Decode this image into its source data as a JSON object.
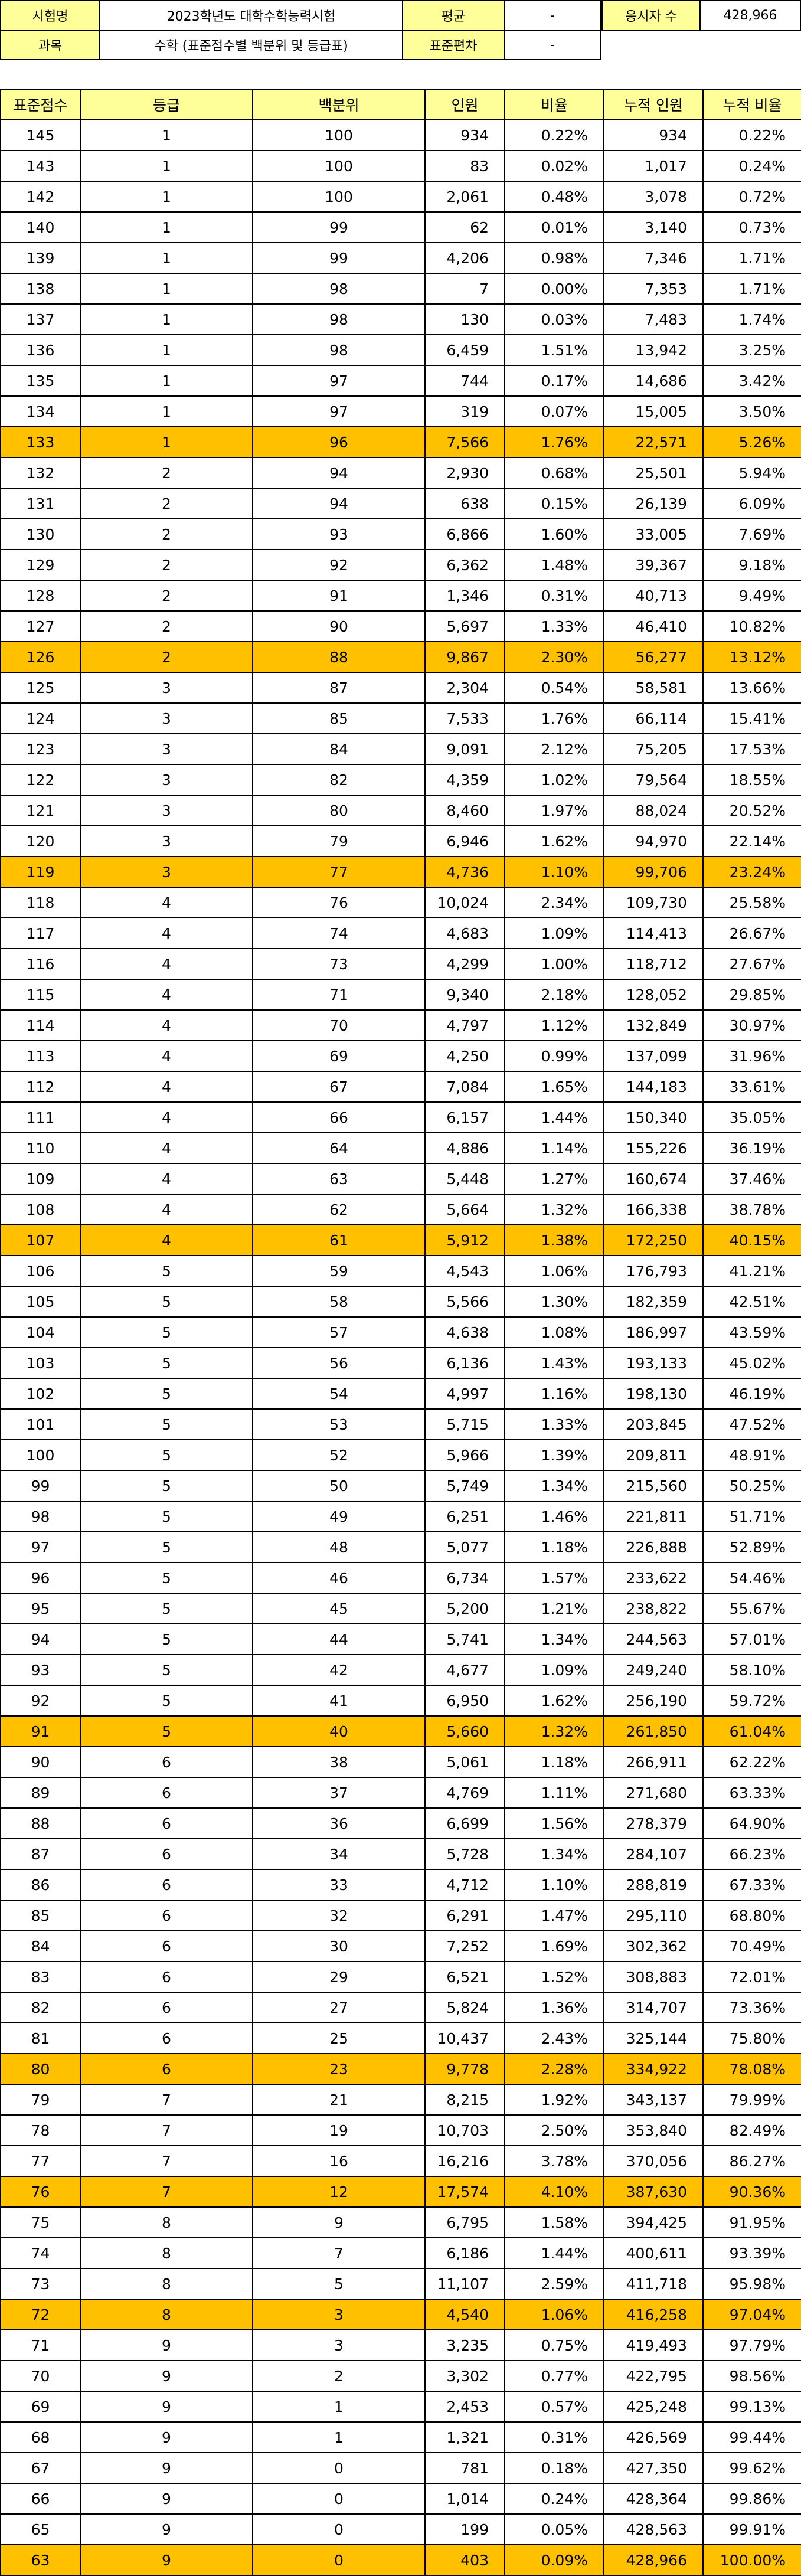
{
  "info": {
    "exam_label": "시험명",
    "exam_value": "2023학년도 대학수학능력시험",
    "mean_label": "평균",
    "mean_value": "-",
    "takers_label": "응시자 수",
    "takers_value": "428,966",
    "subject_label": "과목",
    "subject_value": "수학 (표준점수별 백분위 및 등급표)",
    "sd_label": "표준편차",
    "sd_value": "-"
  },
  "table": {
    "headers": [
      "표준점수",
      "등급",
      "백분위",
      "인원",
      "비율",
      "누적 인원",
      "누적 비율"
    ],
    "highlight_color": "#ffc000",
    "header_color": "#ffff99",
    "rows": [
      [
        "145",
        "1",
        "100",
        "934",
        "0.22%",
        "934",
        "0.22%",
        false
      ],
      [
        "143",
        "1",
        "100",
        "83",
        "0.02%",
        "1,017",
        "0.24%",
        false
      ],
      [
        "142",
        "1",
        "100",
        "2,061",
        "0.48%",
        "3,078",
        "0.72%",
        false
      ],
      [
        "140",
        "1",
        "99",
        "62",
        "0.01%",
        "3,140",
        "0.73%",
        false
      ],
      [
        "139",
        "1",
        "99",
        "4,206",
        "0.98%",
        "7,346",
        "1.71%",
        false
      ],
      [
        "138",
        "1",
        "98",
        "7",
        "0.00%",
        "7,353",
        "1.71%",
        false
      ],
      [
        "137",
        "1",
        "98",
        "130",
        "0.03%",
        "7,483",
        "1.74%",
        false
      ],
      [
        "136",
        "1",
        "98",
        "6,459",
        "1.51%",
        "13,942",
        "3.25%",
        false
      ],
      [
        "135",
        "1",
        "97",
        "744",
        "0.17%",
        "14,686",
        "3.42%",
        false
      ],
      [
        "134",
        "1",
        "97",
        "319",
        "0.07%",
        "15,005",
        "3.50%",
        false
      ],
      [
        "133",
        "1",
        "96",
        "7,566",
        "1.76%",
        "22,571",
        "5.26%",
        true
      ],
      [
        "132",
        "2",
        "94",
        "2,930",
        "0.68%",
        "25,501",
        "5.94%",
        false
      ],
      [
        "131",
        "2",
        "94",
        "638",
        "0.15%",
        "26,139",
        "6.09%",
        false
      ],
      [
        "130",
        "2",
        "93",
        "6,866",
        "1.60%",
        "33,005",
        "7.69%",
        false
      ],
      [
        "129",
        "2",
        "92",
        "6,362",
        "1.48%",
        "39,367",
        "9.18%",
        false
      ],
      [
        "128",
        "2",
        "91",
        "1,346",
        "0.31%",
        "40,713",
        "9.49%",
        false
      ],
      [
        "127",
        "2",
        "90",
        "5,697",
        "1.33%",
        "46,410",
        "10.82%",
        false
      ],
      [
        "126",
        "2",
        "88",
        "9,867",
        "2.30%",
        "56,277",
        "13.12%",
        true
      ],
      [
        "125",
        "3",
        "87",
        "2,304",
        "0.54%",
        "58,581",
        "13.66%",
        false
      ],
      [
        "124",
        "3",
        "85",
        "7,533",
        "1.76%",
        "66,114",
        "15.41%",
        false
      ],
      [
        "123",
        "3",
        "84",
        "9,091",
        "2.12%",
        "75,205",
        "17.53%",
        false
      ],
      [
        "122",
        "3",
        "82",
        "4,359",
        "1.02%",
        "79,564",
        "18.55%",
        false
      ],
      [
        "121",
        "3",
        "80",
        "8,460",
        "1.97%",
        "88,024",
        "20.52%",
        false
      ],
      [
        "120",
        "3",
        "79",
        "6,946",
        "1.62%",
        "94,970",
        "22.14%",
        false
      ],
      [
        "119",
        "3",
        "77",
        "4,736",
        "1.10%",
        "99,706",
        "23.24%",
        true
      ],
      [
        "118",
        "4",
        "76",
        "10,024",
        "2.34%",
        "109,730",
        "25.58%",
        false
      ],
      [
        "117",
        "4",
        "74",
        "4,683",
        "1.09%",
        "114,413",
        "26.67%",
        false
      ],
      [
        "116",
        "4",
        "73",
        "4,299",
        "1.00%",
        "118,712",
        "27.67%",
        false
      ],
      [
        "115",
        "4",
        "71",
        "9,340",
        "2.18%",
        "128,052",
        "29.85%",
        false
      ],
      [
        "114",
        "4",
        "70",
        "4,797",
        "1.12%",
        "132,849",
        "30.97%",
        false
      ],
      [
        "113",
        "4",
        "69",
        "4,250",
        "0.99%",
        "137,099",
        "31.96%",
        false
      ],
      [
        "112",
        "4",
        "67",
        "7,084",
        "1.65%",
        "144,183",
        "33.61%",
        false
      ],
      [
        "111",
        "4",
        "66",
        "6,157",
        "1.44%",
        "150,340",
        "35.05%",
        false
      ],
      [
        "110",
        "4",
        "64",
        "4,886",
        "1.14%",
        "155,226",
        "36.19%",
        false
      ],
      [
        "109",
        "4",
        "63",
        "5,448",
        "1.27%",
        "160,674",
        "37.46%",
        false
      ],
      [
        "108",
        "4",
        "62",
        "5,664",
        "1.32%",
        "166,338",
        "38.78%",
        false
      ],
      [
        "107",
        "4",
        "61",
        "5,912",
        "1.38%",
        "172,250",
        "40.15%",
        true
      ],
      [
        "106",
        "5",
        "59",
        "4,543",
        "1.06%",
        "176,793",
        "41.21%",
        false
      ],
      [
        "105",
        "5",
        "58",
        "5,566",
        "1.30%",
        "182,359",
        "42.51%",
        false
      ],
      [
        "104",
        "5",
        "57",
        "4,638",
        "1.08%",
        "186,997",
        "43.59%",
        false
      ],
      [
        "103",
        "5",
        "56",
        "6,136",
        "1.43%",
        "193,133",
        "45.02%",
        false
      ],
      [
        "102",
        "5",
        "54",
        "4,997",
        "1.16%",
        "198,130",
        "46.19%",
        false
      ],
      [
        "101",
        "5",
        "53",
        "5,715",
        "1.33%",
        "203,845",
        "47.52%",
        false
      ],
      [
        "100",
        "5",
        "52",
        "5,966",
        "1.39%",
        "209,811",
        "48.91%",
        false
      ],
      [
        "99",
        "5",
        "50",
        "5,749",
        "1.34%",
        "215,560",
        "50.25%",
        false
      ],
      [
        "98",
        "5",
        "49",
        "6,251",
        "1.46%",
        "221,811",
        "51.71%",
        false
      ],
      [
        "97",
        "5",
        "48",
        "5,077",
        "1.18%",
        "226,888",
        "52.89%",
        false
      ],
      [
        "96",
        "5",
        "46",
        "6,734",
        "1.57%",
        "233,622",
        "54.46%",
        false
      ],
      [
        "95",
        "5",
        "45",
        "5,200",
        "1.21%",
        "238,822",
        "55.67%",
        false
      ],
      [
        "94",
        "5",
        "44",
        "5,741",
        "1.34%",
        "244,563",
        "57.01%",
        false
      ],
      [
        "93",
        "5",
        "42",
        "4,677",
        "1.09%",
        "249,240",
        "58.10%",
        false
      ],
      [
        "92",
        "5",
        "41",
        "6,950",
        "1.62%",
        "256,190",
        "59.72%",
        false
      ],
      [
        "91",
        "5",
        "40",
        "5,660",
        "1.32%",
        "261,850",
        "61.04%",
        true
      ],
      [
        "90",
        "6",
        "38",
        "5,061",
        "1.18%",
        "266,911",
        "62.22%",
        false
      ],
      [
        "89",
        "6",
        "37",
        "4,769",
        "1.11%",
        "271,680",
        "63.33%",
        false
      ],
      [
        "88",
        "6",
        "36",
        "6,699",
        "1.56%",
        "278,379",
        "64.90%",
        false
      ],
      [
        "87",
        "6",
        "34",
        "5,728",
        "1.34%",
        "284,107",
        "66.23%",
        false
      ],
      [
        "86",
        "6",
        "33",
        "4,712",
        "1.10%",
        "288,819",
        "67.33%",
        false
      ],
      [
        "85",
        "6",
        "32",
        "6,291",
        "1.47%",
        "295,110",
        "68.80%",
        false
      ],
      [
        "84",
        "6",
        "30",
        "7,252",
        "1.69%",
        "302,362",
        "70.49%",
        false
      ],
      [
        "83",
        "6",
        "29",
        "6,521",
        "1.52%",
        "308,883",
        "72.01%",
        false
      ],
      [
        "82",
        "6",
        "27",
        "5,824",
        "1.36%",
        "314,707",
        "73.36%",
        false
      ],
      [
        "81",
        "6",
        "25",
        "10,437",
        "2.43%",
        "325,144",
        "75.80%",
        false
      ],
      [
        "80",
        "6",
        "23",
        "9,778",
        "2.28%",
        "334,922",
        "78.08%",
        true
      ],
      [
        "79",
        "7",
        "21",
        "8,215",
        "1.92%",
        "343,137",
        "79.99%",
        false
      ],
      [
        "78",
        "7",
        "19",
        "10,703",
        "2.50%",
        "353,840",
        "82.49%",
        false
      ],
      [
        "77",
        "7",
        "16",
        "16,216",
        "3.78%",
        "370,056",
        "86.27%",
        false
      ],
      [
        "76",
        "7",
        "12",
        "17,574",
        "4.10%",
        "387,630",
        "90.36%",
        true
      ],
      [
        "75",
        "8",
        "9",
        "6,795",
        "1.58%",
        "394,425",
        "91.95%",
        false
      ],
      [
        "74",
        "8",
        "7",
        "6,186",
        "1.44%",
        "400,611",
        "93.39%",
        false
      ],
      [
        "73",
        "8",
        "5",
        "11,107",
        "2.59%",
        "411,718",
        "95.98%",
        false
      ],
      [
        "72",
        "8",
        "3",
        "4,540",
        "1.06%",
        "416,258",
        "97.04%",
        true
      ],
      [
        "71",
        "9",
        "3",
        "3,235",
        "0.75%",
        "419,493",
        "97.79%",
        false
      ],
      [
        "70",
        "9",
        "2",
        "3,302",
        "0.77%",
        "422,795",
        "98.56%",
        false
      ],
      [
        "69",
        "9",
        "1",
        "2,453",
        "0.57%",
        "425,248",
        "99.13%",
        false
      ],
      [
        "68",
        "9",
        "1",
        "1,321",
        "0.31%",
        "426,569",
        "99.44%",
        false
      ],
      [
        "67",
        "9",
        "0",
        "781",
        "0.18%",
        "427,350",
        "99.62%",
        false
      ],
      [
        "66",
        "9",
        "0",
        "1,014",
        "0.24%",
        "428,364",
        "99.86%",
        false
      ],
      [
        "65",
        "9",
        "0",
        "199",
        "0.05%",
        "428,563",
        "99.91%",
        false
      ],
      [
        "63",
        "9",
        "0",
        "403",
        "0.09%",
        "428,966",
        "100.00%",
        true
      ]
    ]
  }
}
